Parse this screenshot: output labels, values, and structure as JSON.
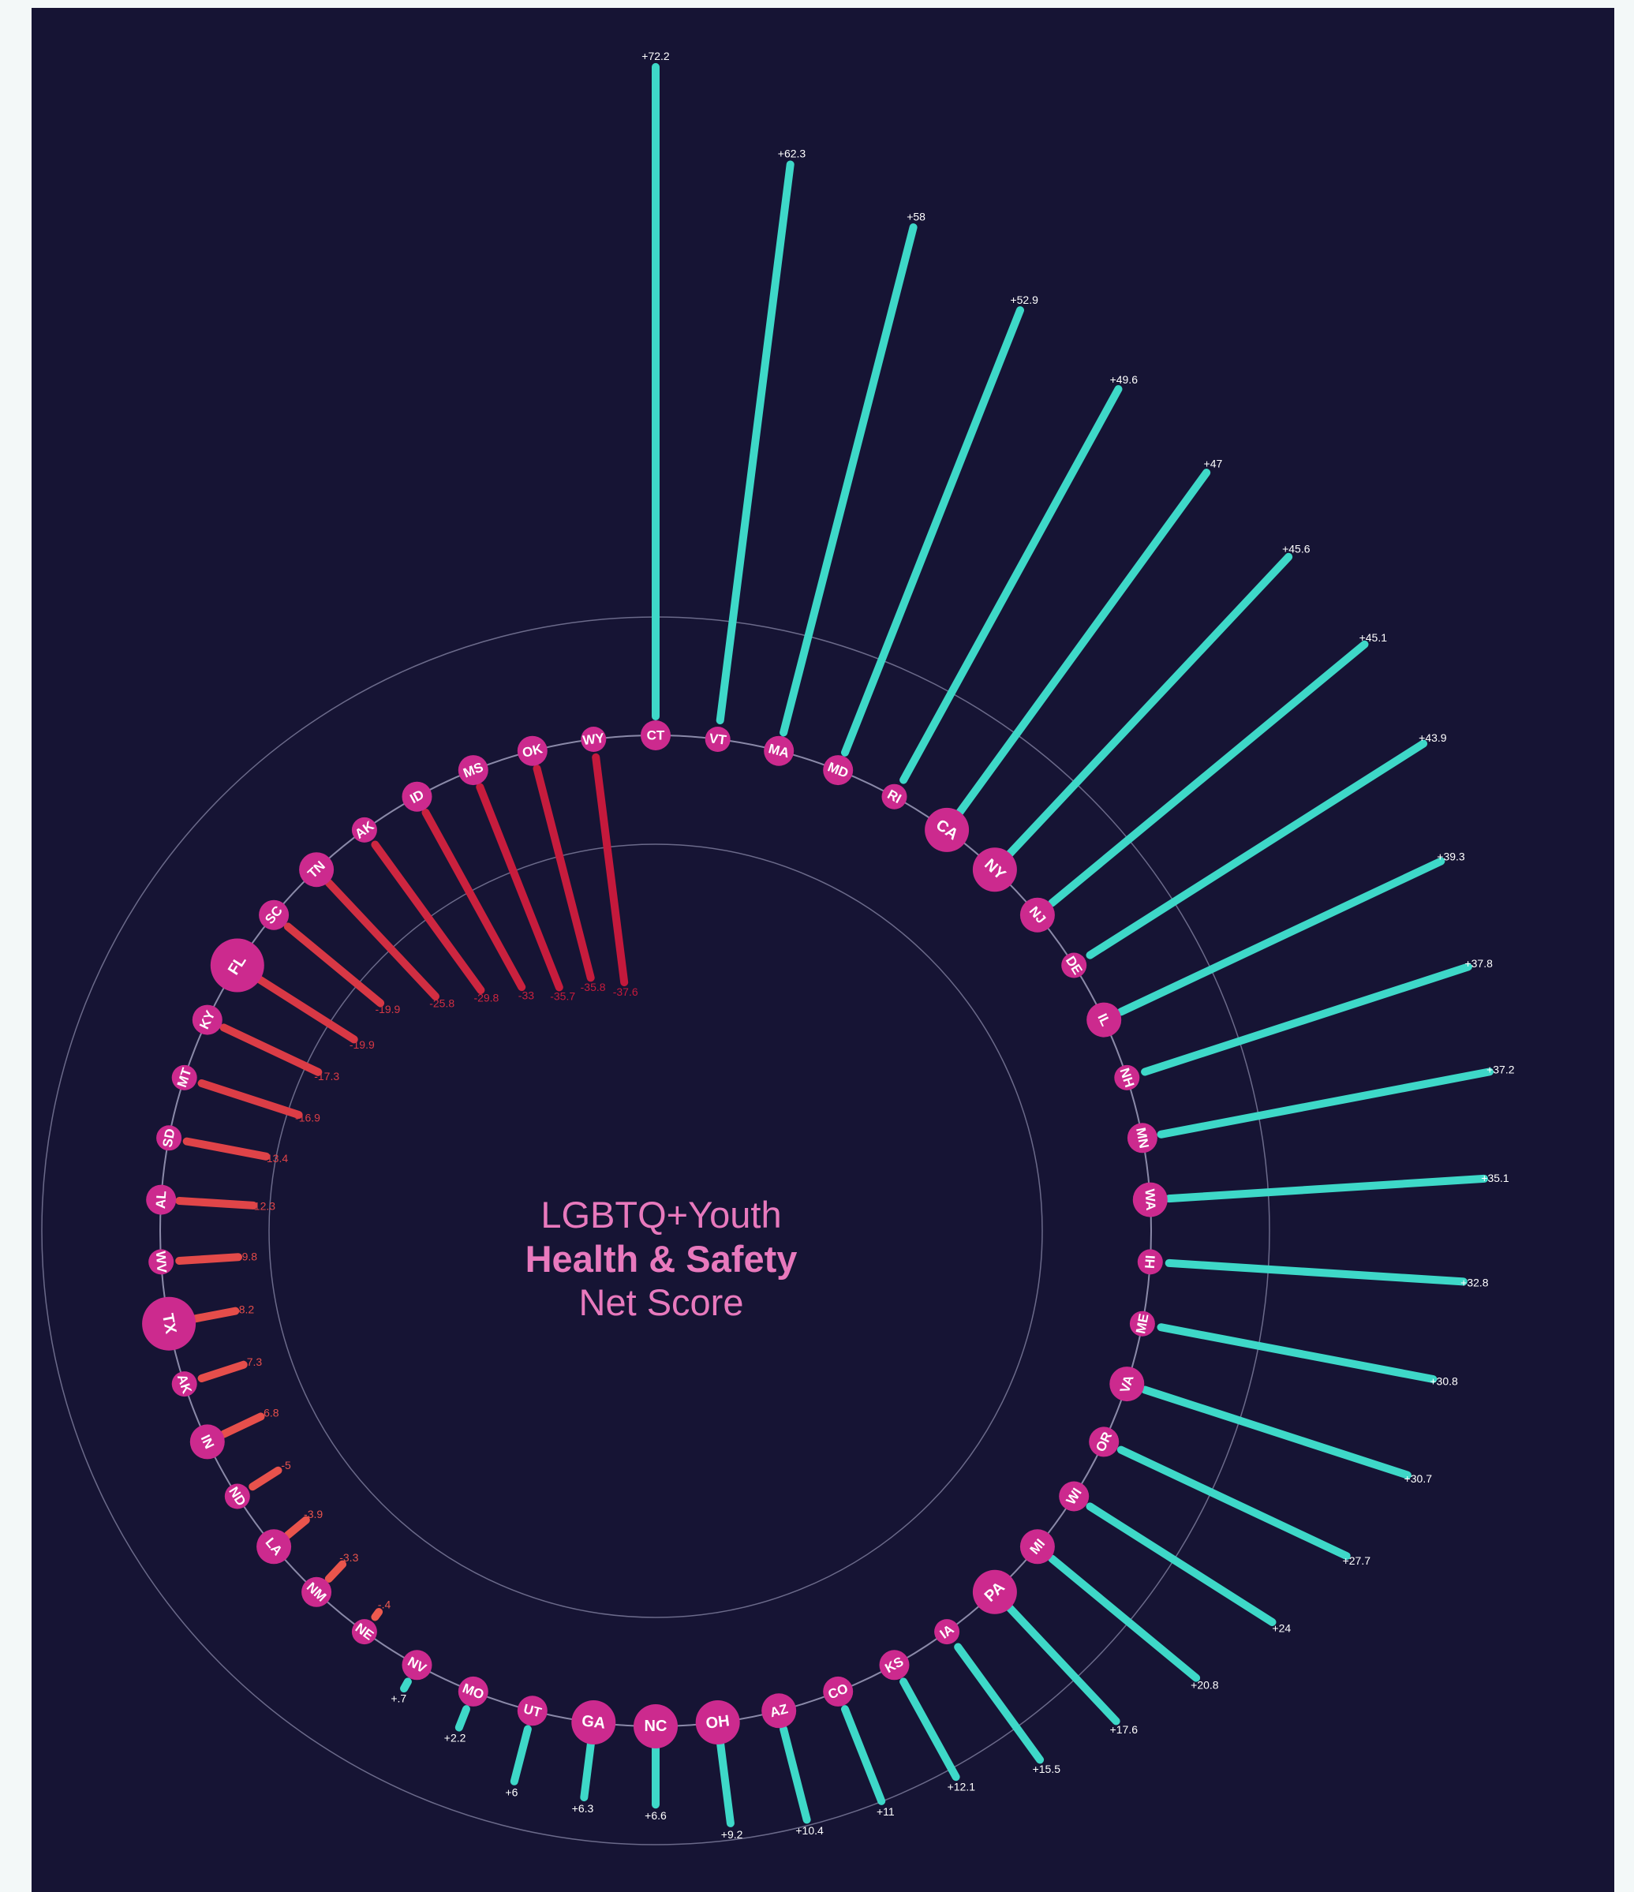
{
  "title": {
    "line1": "LGBTQ+Youth",
    "line2": "Health & Safety",
    "line3": "Net Score"
  },
  "colors": {
    "background": "#161434",
    "positive": "#3ed8c8",
    "negative_light": "#ee5b4e",
    "negative_dark": "#c4183c",
    "bubble": "#cc2a8e",
    "ring": "#6b6a8a",
    "title": "#e879bd"
  },
  "chart_data": {
    "type": "radial-bar",
    "series": [
      {
        "state": "CT",
        "value": 72.2,
        "label": "+72.2",
        "bubble": 1
      },
      {
        "state": "VT",
        "value": 62.3,
        "label": "+62.3",
        "bubble": 0
      },
      {
        "state": "MA",
        "value": 58,
        "label": "+58",
        "bubble": 1
      },
      {
        "state": "MD",
        "value": 52.9,
        "label": "+52.9",
        "bubble": 1
      },
      {
        "state": "RI",
        "value": 49.6,
        "label": "+49.6",
        "bubble": 0
      },
      {
        "state": "CA",
        "value": 47,
        "label": "+47",
        "bubble": 3
      },
      {
        "state": "NY",
        "value": 45.6,
        "label": "+45.6",
        "bubble": 3
      },
      {
        "state": "NJ",
        "value": 45.1,
        "label": "+45.1",
        "bubble": 2
      },
      {
        "state": "DE",
        "value": 43.9,
        "label": "+43.9",
        "bubble": 0
      },
      {
        "state": "IL",
        "value": 39.3,
        "label": "+39.3",
        "bubble": 2
      },
      {
        "state": "NH",
        "value": 37.8,
        "label": "+37.8",
        "bubble": 0
      },
      {
        "state": "MN",
        "value": 37.2,
        "label": "+37.2",
        "bubble": 1
      },
      {
        "state": "WA",
        "value": 35.1,
        "label": "+35.1",
        "bubble": 2
      },
      {
        "state": "HI",
        "value": 32.8,
        "label": "+32.8",
        "bubble": 0
      },
      {
        "state": "ME",
        "value": 30.8,
        "label": "+30.8",
        "bubble": 0
      },
      {
        "state": "VA",
        "value": 30.7,
        "label": "+30.7",
        "bubble": 2
      },
      {
        "state": "OR",
        "value": 27.7,
        "label": "+27.7",
        "bubble": 1
      },
      {
        "state": "WI",
        "value": 24,
        "label": "+24",
        "bubble": 1
      },
      {
        "state": "MI",
        "value": 20.8,
        "label": "+20.8",
        "bubble": 2
      },
      {
        "state": "PA",
        "value": 17.6,
        "label": "+17.6",
        "bubble": 3
      },
      {
        "state": "IA",
        "value": 15.5,
        "label": "+15.5",
        "bubble": 0
      },
      {
        "state": "KS",
        "value": 12.1,
        "label": "+12.1",
        "bubble": 1
      },
      {
        "state": "CO",
        "value": 11,
        "label": "+11",
        "bubble": 1
      },
      {
        "state": "AZ",
        "value": 10.4,
        "label": "+10.4",
        "bubble": 2
      },
      {
        "state": "OH",
        "value": 9.2,
        "label": "+9.2",
        "bubble": 3
      },
      {
        "state": "NC",
        "value": 6.6,
        "label": "+6.6",
        "bubble": 3
      },
      {
        "state": "GA",
        "value": 6.3,
        "label": "+6.3",
        "bubble": 3
      },
      {
        "state": "UT",
        "value": 6,
        "label": "+6",
        "bubble": 1
      },
      {
        "state": "MO",
        "value": 2.2,
        "label": "+2.2",
        "bubble": 1
      },
      {
        "state": "NV",
        "value": 0.7,
        "label": "+.7",
        "bubble": 1
      },
      {
        "state": "NE",
        "value": -0.4,
        "label": "-.4",
        "bubble": 0
      },
      {
        "state": "NM",
        "value": -3.3,
        "label": "-3.3",
        "bubble": 1
      },
      {
        "state": "LA",
        "value": -3.9,
        "label": "-3.9",
        "bubble": 2
      },
      {
        "state": "ND",
        "value": -5,
        "label": "-5",
        "bubble": 0
      },
      {
        "state": "IN",
        "value": -6.8,
        "label": "-6.8",
        "bubble": 2
      },
      {
        "state": "AK",
        "value": -7.3,
        "label": "-7.3",
        "bubble": 0
      },
      {
        "state": "TX",
        "value": -8.2,
        "label": "-8.2",
        "bubble": 4
      },
      {
        "state": "WV",
        "value": -9.8,
        "label": "-9.8",
        "bubble": 0
      },
      {
        "state": "AL",
        "value": -12.3,
        "label": "-12.3",
        "bubble": 1
      },
      {
        "state": "SD",
        "value": -13.4,
        "label": "-13.4",
        "bubble": 0
      },
      {
        "state": "MT",
        "value": -16.9,
        "label": "-16.9",
        "bubble": 0
      },
      {
        "state": "KY",
        "value": -17.3,
        "label": "-17.3",
        "bubble": 1
      },
      {
        "state": "FL",
        "value": -19.9,
        "label": "-19.9",
        "bubble": 4
      },
      {
        "state": "SC",
        "value": -19.9,
        "label": "-19.9",
        "bubble": 1
      },
      {
        "state": "TN",
        "value": -25.8,
        "label": "-25.8",
        "bubble": 2
      },
      {
        "state": "AK",
        "value": -29.8,
        "label": "-29.8",
        "bubble": 0
      },
      {
        "state": "ID",
        "value": -33,
        "label": "-33",
        "bubble": 1
      },
      {
        "state": "MS",
        "value": -35.7,
        "label": "-35.7",
        "bubble": 1
      },
      {
        "state": "OK",
        "value": -35.8,
        "label": "-35.8",
        "bubble": 1
      },
      {
        "state": "WY",
        "value": -37.6,
        "label": "-37.6",
        "bubble": 0
      }
    ]
  }
}
